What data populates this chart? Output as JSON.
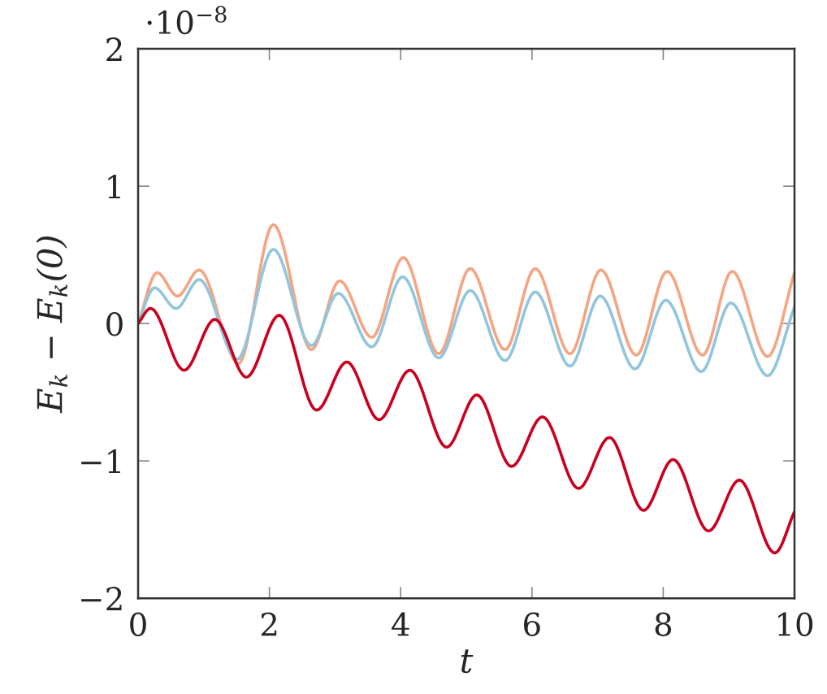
{
  "chart_data": {
    "type": "line",
    "xlabel": "t",
    "ylabel": "E$_{k}$ − E$_{k}$(0)",
    "annotations": [
      "·10$^{−8}$"
    ],
    "xlim": [
      0,
      10
    ],
    "ylim": [
      -2,
      2
    ],
    "xticks": [
      0,
      2,
      4,
      6,
      8,
      10
    ],
    "yticks": [
      -2,
      -1,
      0,
      1,
      2
    ],
    "series": [
      {
        "color": "#f4a582",
        "x": [
          0,
          0.29,
          0.6,
          0.93,
          1.53,
          2.06,
          2.64,
          3.07,
          3.56,
          4.04,
          4.58,
          5.06,
          5.59,
          6.05,
          6.58,
          7.05,
          7.59,
          8.06,
          8.6,
          9.05,
          9.59,
          10
        ],
        "values": [
          0,
          0.37,
          0.2,
          0.39,
          -0.29,
          0.72,
          -0.19,
          0.31,
          -0.1,
          0.48,
          -0.22,
          0.4,
          -0.19,
          0.4,
          -0.22,
          0.39,
          -0.23,
          0.38,
          -0.23,
          0.38,
          -0.24,
          0.37
        ]
      },
      {
        "color": "#92c5de",
        "x": [
          0,
          0.25,
          0.58,
          0.93,
          1.51,
          2.06,
          2.64,
          3.05,
          3.56,
          4.03,
          4.58,
          5.06,
          5.59,
          6.05,
          6.58,
          7.04,
          7.57,
          8.04,
          8.58,
          9.03,
          9.59,
          10
        ],
        "values": [
          0,
          0.26,
          0.11,
          0.32,
          -0.26,
          0.54,
          -0.16,
          0.22,
          -0.17,
          0.34,
          -0.25,
          0.24,
          -0.27,
          0.23,
          -0.31,
          0.2,
          -0.33,
          0.17,
          -0.35,
          0.15,
          -0.38,
          0.12
        ]
      },
      {
        "color": "#ca0020",
        "x": [
          0,
          0.19,
          0.7,
          1.17,
          1.65,
          2.15,
          2.72,
          3.18,
          3.67,
          4.14,
          4.7,
          5.16,
          5.69,
          6.16,
          6.71,
          7.18,
          7.7,
          8.15,
          8.69,
          9.16,
          9.7,
          10
        ],
        "values": [
          0,
          0.11,
          -0.34,
          0.03,
          -0.39,
          0.06,
          -0.63,
          -0.28,
          -0.7,
          -0.34,
          -0.9,
          -0.52,
          -1.04,
          -0.68,
          -1.2,
          -0.83,
          -1.36,
          -0.99,
          -1.51,
          -1.14,
          -1.67,
          -1.37
        ]
      }
    ]
  }
}
